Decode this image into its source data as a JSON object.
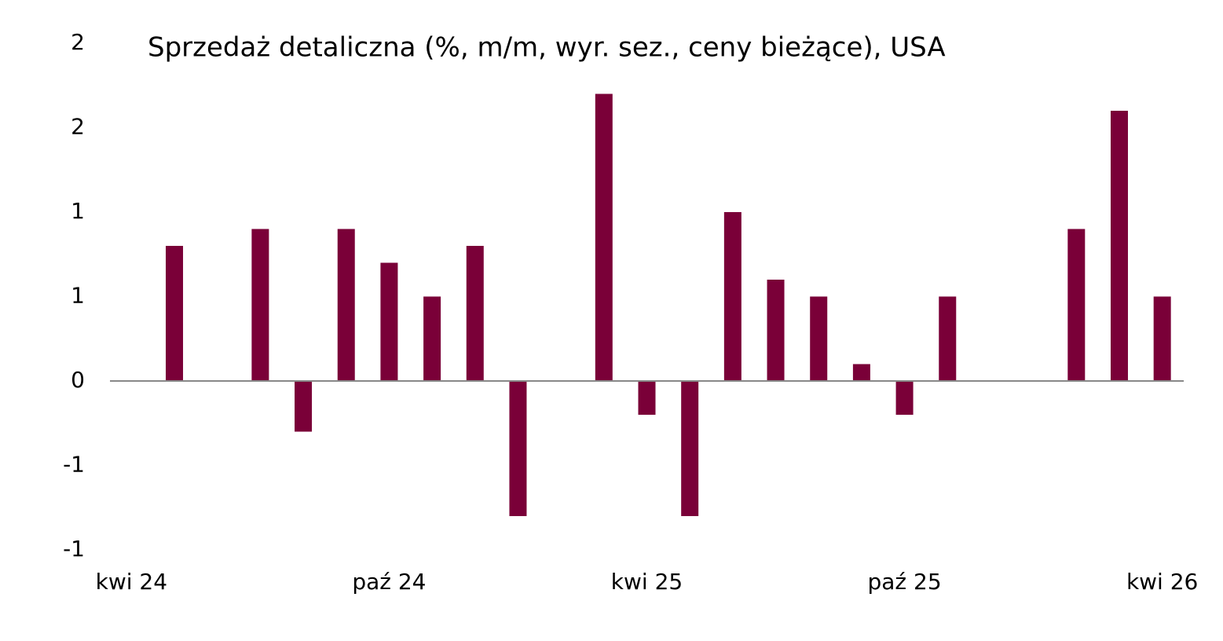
{
  "chart_data": {
    "type": "bar",
    "title": "Sprzedaż detaliczna (%, m/m, wyr. sez., ceny bieżące), USA",
    "categories": [
      "kwi 24",
      null,
      null,
      null,
      null,
      null,
      "paź 24",
      null,
      null,
      null,
      null,
      null,
      "kwi 25",
      null,
      null,
      null,
      null,
      null,
      "paź 25",
      null,
      null,
      null,
      null,
      null,
      "kwi 26"
    ],
    "values": [
      null,
      0.8,
      null,
      0.9,
      -0.3,
      0.9,
      0.7,
      0.5,
      0.8,
      -0.8,
      null,
      1.7,
      -0.2,
      -0.8,
      1.0,
      0.6,
      0.5,
      0.1,
      -0.2,
      0.5,
      null,
      null,
      0.9,
      1.6,
      0.5
    ],
    "color": "#7a0038",
    "ylim": [
      -1,
      2
    ],
    "yticks": [
      -1,
      {
        "value": -0.5,
        "label": "-1"
      },
      0,
      {
        "value": 0.5,
        "label": "1"
      },
      1,
      {
        "value": 1.5,
        "label": "2"
      },
      2
    ],
    "grid": false
  }
}
